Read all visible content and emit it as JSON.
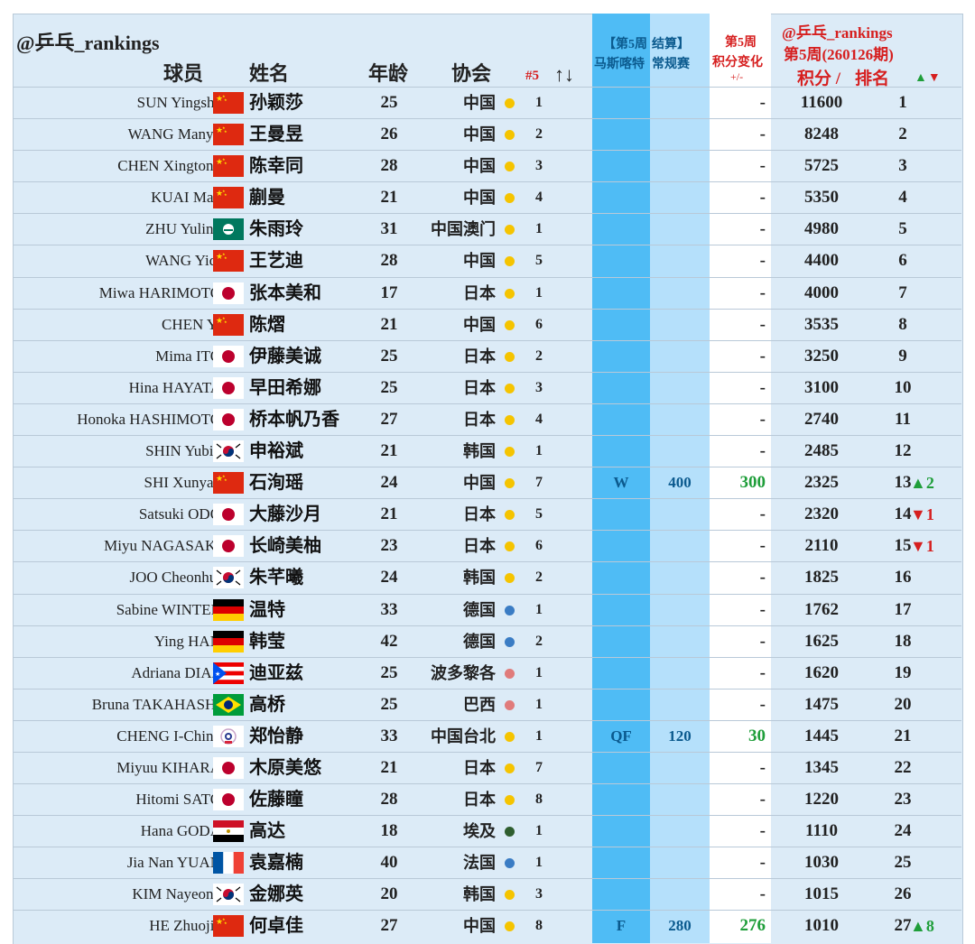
{
  "header": {
    "brand_left": "@乒乓_rankings",
    "col_player": "球员",
    "col_name": "姓名",
    "col_age": "年龄",
    "col_assoc": "协会",
    "col_assoc_rank": "#5",
    "sort_icon": "↑↓",
    "event_line1": "【第5周",
    "event_line2": "马斯喀特",
    "event_line3": "结算】",
    "event_line4": "常规赛",
    "change_line1": "第5周",
    "change_line2": "积分变化",
    "change_line3": "+/-",
    "brand_right": "@乒乓_rankings",
    "week_label": "第5周(260126期)",
    "col_points": "积分 /",
    "col_rank": "排名",
    "arrow_up": "▲",
    "arrow_down": "▼"
  },
  "colors": {
    "event_band": "#4fbcf5",
    "points_band": "#b5e0fb",
    "row_background": "#dcebf7",
    "accent_red": "#d61f1f",
    "accent_green": "#1f9e3a",
    "link_blue": "#0b5a8e"
  },
  "rows": [
    {
      "en": "SUN Yingsha",
      "flag": "china-flag",
      "cn": "孙颖莎",
      "age": "25",
      "assoc": "中国",
      "dot": "#f5c400",
      "arank": "1",
      "event": "",
      "pts": "",
      "chg": "-",
      "total": "11600",
      "rank": "1",
      "move": "",
      "dir": ""
    },
    {
      "en": "WANG Manyu",
      "flag": "china-flag",
      "cn": "王曼昱",
      "age": "26",
      "assoc": "中国",
      "dot": "#f5c400",
      "arank": "2",
      "event": "",
      "pts": "",
      "chg": "-",
      "total": "8248",
      "rank": "2",
      "move": "",
      "dir": ""
    },
    {
      "en": "CHEN Xingtong",
      "flag": "china-flag",
      "cn": "陈幸同",
      "age": "28",
      "assoc": "中国",
      "dot": "#f5c400",
      "arank": "3",
      "event": "",
      "pts": "",
      "chg": "-",
      "total": "5725",
      "rank": "3",
      "move": "",
      "dir": ""
    },
    {
      "en": "KUAI Man",
      "flag": "china-flag",
      "cn": "蒯曼",
      "age": "21",
      "assoc": "中国",
      "dot": "#f5c400",
      "arank": "4",
      "event": "",
      "pts": "",
      "chg": "-",
      "total": "5350",
      "rank": "4",
      "move": "",
      "dir": ""
    },
    {
      "en": "ZHU Yuling",
      "flag": "macau-flag",
      "cn": "朱雨玲",
      "age": "31",
      "assoc": "中国澳门",
      "dot": "#f5c400",
      "arank": "1",
      "event": "",
      "pts": "",
      "chg": "-",
      "total": "4980",
      "rank": "5",
      "move": "",
      "dir": ""
    },
    {
      "en": "WANG Yidi",
      "flag": "china-flag",
      "cn": "王艺迪",
      "age": "28",
      "assoc": "中国",
      "dot": "#f5c400",
      "arank": "5",
      "event": "",
      "pts": "",
      "chg": "-",
      "total": "4400",
      "rank": "6",
      "move": "",
      "dir": ""
    },
    {
      "en": "Miwa HARIMOTO",
      "flag": "japan-flag",
      "cn": "张本美和",
      "age": "17",
      "assoc": "日本",
      "dot": "#f5c400",
      "arank": "1",
      "event": "",
      "pts": "",
      "chg": "-",
      "total": "4000",
      "rank": "7",
      "move": "",
      "dir": ""
    },
    {
      "en": "CHEN Yi",
      "flag": "china-flag",
      "cn": "陈熠",
      "age": "21",
      "assoc": "中国",
      "dot": "#f5c400",
      "arank": "6",
      "event": "",
      "pts": "",
      "chg": "-",
      "total": "3535",
      "rank": "8",
      "move": "",
      "dir": ""
    },
    {
      "en": "Mima ITO",
      "flag": "japan-flag",
      "cn": "伊藤美诚",
      "age": "25",
      "assoc": "日本",
      "dot": "#f5c400",
      "arank": "2",
      "event": "",
      "pts": "",
      "chg": "-",
      "total": "3250",
      "rank": "9",
      "move": "",
      "dir": ""
    },
    {
      "en": "Hina HAYATA",
      "flag": "japan-flag",
      "cn": "早田希娜",
      "age": "25",
      "assoc": "日本",
      "dot": "#f5c400",
      "arank": "3",
      "event": "",
      "pts": "",
      "chg": "-",
      "total": "3100",
      "rank": "10",
      "move": "",
      "dir": ""
    },
    {
      "en": "Honoka HASHIMOTO",
      "flag": "japan-flag",
      "cn": "桥本帆乃香",
      "age": "27",
      "assoc": "日本",
      "dot": "#f5c400",
      "arank": "4",
      "event": "",
      "pts": "",
      "chg": "-",
      "total": "2740",
      "rank": "11",
      "move": "",
      "dir": ""
    },
    {
      "en": "SHIN Yubin",
      "flag": "korea-flag",
      "cn": "申裕斌",
      "age": "21",
      "assoc": "韩国",
      "dot": "#f5c400",
      "arank": "1",
      "event": "",
      "pts": "",
      "chg": "-",
      "total": "2485",
      "rank": "12",
      "move": "",
      "dir": ""
    },
    {
      "en": "SHI Xunyao",
      "flag": "china-flag",
      "cn": "石洵瑶",
      "age": "24",
      "assoc": "中国",
      "dot": "#f5c400",
      "arank": "7",
      "event": "W",
      "pts": "400",
      "chg": "300",
      "total": "2325",
      "rank": "13",
      "move": "▲2",
      "dir": "up"
    },
    {
      "en": "Satsuki ODO",
      "flag": "japan-flag",
      "cn": "大藤沙月",
      "age": "21",
      "assoc": "日本",
      "dot": "#f5c400",
      "arank": "5",
      "event": "",
      "pts": "",
      "chg": "-",
      "total": "2320",
      "rank": "14",
      "move": "▼1",
      "dir": "down"
    },
    {
      "en": "Miyu NAGASAKI",
      "flag": "japan-flag",
      "cn": "长崎美柚",
      "age": "23",
      "assoc": "日本",
      "dot": "#f5c400",
      "arank": "6",
      "event": "",
      "pts": "",
      "chg": "-",
      "total": "2110",
      "rank": "15",
      "move": "▼1",
      "dir": "down"
    },
    {
      "en": "JOO Cheonhui",
      "flag": "korea-flag",
      "cn": "朱芊曦",
      "age": "24",
      "assoc": "韩国",
      "dot": "#f5c400",
      "arank": "2",
      "event": "",
      "pts": "",
      "chg": "-",
      "total": "1825",
      "rank": "16",
      "move": "",
      "dir": ""
    },
    {
      "en": "Sabine WINTER",
      "flag": "germany-flag",
      "cn": "温特",
      "age": "33",
      "assoc": "德国",
      "dot": "#3a7cc4",
      "arank": "1",
      "event": "",
      "pts": "",
      "chg": "-",
      "total": "1762",
      "rank": "17",
      "move": "",
      "dir": ""
    },
    {
      "en": "Ying HAN",
      "flag": "germany-flag",
      "cn": "韩莹",
      "age": "42",
      "assoc": "德国",
      "dot": "#3a7cc4",
      "arank": "2",
      "event": "",
      "pts": "",
      "chg": "-",
      "total": "1625",
      "rank": "18",
      "move": "",
      "dir": ""
    },
    {
      "en": "Adriana DIAZ",
      "flag": "puerto-rico-flag",
      "cn": "迪亚兹",
      "age": "25",
      "assoc": "波多黎各",
      "dot": "#e07b7b",
      "arank": "1",
      "event": "",
      "pts": "",
      "chg": "-",
      "total": "1620",
      "rank": "19",
      "move": "",
      "dir": ""
    },
    {
      "en": "Bruna TAKAHASHI",
      "flag": "brazil-flag",
      "cn": "高桥",
      "age": "25",
      "assoc": "巴西",
      "dot": "#e07b7b",
      "arank": "1",
      "event": "",
      "pts": "",
      "chg": "-",
      "total": "1475",
      "rank": "20",
      "move": "",
      "dir": ""
    },
    {
      "en": "CHENG I-Ching",
      "flag": "chinese-taipei-flag",
      "cn": "郑怡静",
      "age": "33",
      "assoc": "中国台北",
      "dot": "#f5c400",
      "arank": "1",
      "event": "QF",
      "pts": "120",
      "chg": "30",
      "total": "1445",
      "rank": "21",
      "move": "",
      "dir": ""
    },
    {
      "en": "Miyuu KIHARA",
      "flag": "japan-flag",
      "cn": "木原美悠",
      "age": "21",
      "assoc": "日本",
      "dot": "#f5c400",
      "arank": "7",
      "event": "",
      "pts": "",
      "chg": "-",
      "total": "1345",
      "rank": "22",
      "move": "",
      "dir": ""
    },
    {
      "en": "Hitomi SATO",
      "flag": "japan-flag",
      "cn": "佐藤瞳",
      "age": "28",
      "assoc": "日本",
      "dot": "#f5c400",
      "arank": "8",
      "event": "",
      "pts": "",
      "chg": "-",
      "total": "1220",
      "rank": "23",
      "move": "",
      "dir": ""
    },
    {
      "en": "Hana GODA",
      "flag": "egypt-flag",
      "cn": "高达",
      "age": "18",
      "assoc": "埃及",
      "dot": "#2f5e2f",
      "arank": "1",
      "event": "",
      "pts": "",
      "chg": "-",
      "total": "1110",
      "rank": "24",
      "move": "",
      "dir": ""
    },
    {
      "en": "Jia Nan YUAN",
      "flag": "france-flag",
      "cn": "袁嘉楠",
      "age": "40",
      "assoc": "法国",
      "dot": "#3a7cc4",
      "arank": "1",
      "event": "",
      "pts": "",
      "chg": "-",
      "total": "1030",
      "rank": "25",
      "move": "",
      "dir": ""
    },
    {
      "en": "KIM Nayeong",
      "flag": "korea-flag",
      "cn": "金娜英",
      "age": "20",
      "assoc": "韩国",
      "dot": "#f5c400",
      "arank": "3",
      "event": "",
      "pts": "",
      "chg": "-",
      "total": "1015",
      "rank": "26",
      "move": "",
      "dir": ""
    },
    {
      "en": "HE Zhuojia",
      "flag": "china-flag",
      "cn": "何卓佳",
      "age": "27",
      "assoc": "中国",
      "dot": "#f5c400",
      "arank": "8",
      "event": "F",
      "pts": "280",
      "chg": "276",
      "total": "1010",
      "rank": "27",
      "move": "▲8",
      "dir": "up"
    }
  ]
}
